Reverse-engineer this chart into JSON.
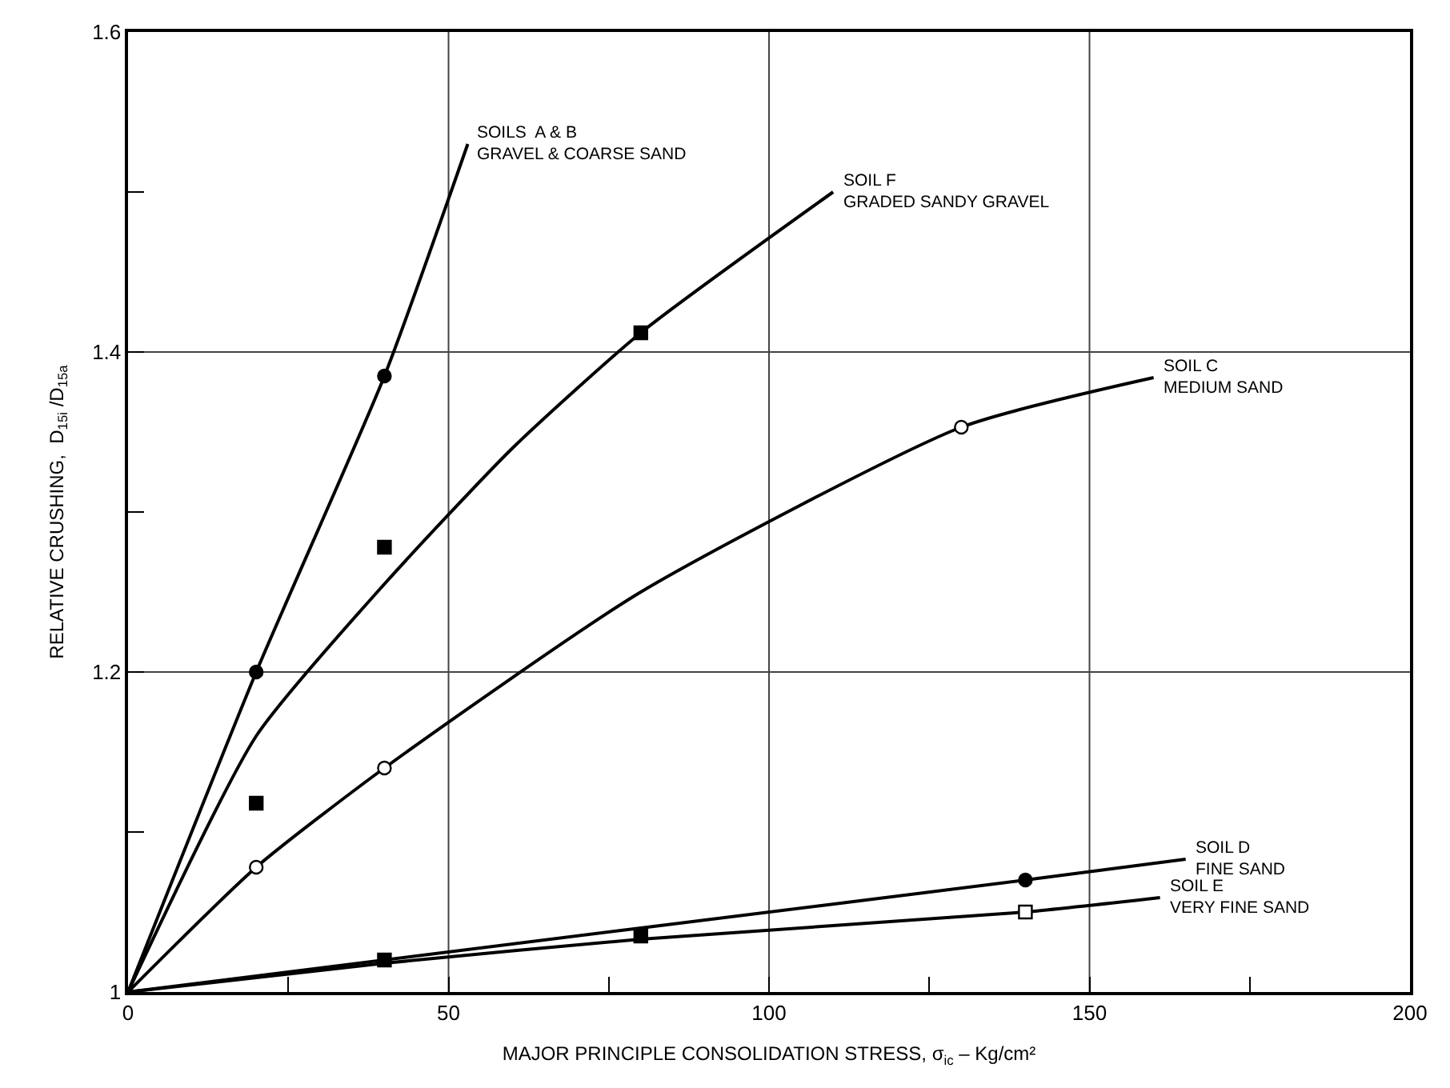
{
  "chart_data": {
    "type": "line",
    "xlabel": "MAJOR PRINCIPLE CONSOLIDATION STRESS, σ$_{ic}$ – Kg/cm²",
    "ylabel": "RELATIVE CRUSHING,  D$_{15i}$ /D$_{15a}$",
    "xlim": [
      0,
      200
    ],
    "ylim": [
      1,
      1.6
    ],
    "xticks": [
      0,
      {
        "value": 25,
        "label": null
      },
      50,
      {
        "value": 75,
        "label": null
      },
      100,
      {
        "value": 125,
        "label": null
      },
      150,
      {
        "value": 175,
        "label": null
      },
      200
    ],
    "yticks": [
      1,
      {
        "value": 1.1,
        "label": null
      },
      1.2,
      {
        "value": 1.3,
        "label": null
      },
      1.4,
      {
        "value": 1.5,
        "label": null
      },
      1.6
    ],
    "grid": true,
    "legend": false,
    "marker": "none",
    "line_style": "solid",
    "series": [
      {
        "name": "SOILS  A & B\nGRAVEL & COARSE SAND",
        "color": "#000000",
        "x": [
          0,
          20,
          40,
          53
        ],
        "values": [
          1,
          1.2,
          1.385,
          1.53
        ]
      },
      {
        "name": "SOIL F\nGRADED SANDY GRAVEL",
        "color": "#000000",
        "x": [
          0,
          20,
          40,
          60,
          80,
          110
        ],
        "values": [
          1,
          1.16,
          1.255,
          1.34,
          1.412,
          1.5
        ]
      },
      {
        "name": "SOIL C\nMEDIUM SAND",
        "color": "#000000",
        "x": [
          0,
          20,
          40,
          80,
          130,
          160
        ],
        "values": [
          1,
          1.078,
          1.14,
          1.25,
          1.353,
          1.384
        ]
      },
      {
        "name": "SOIL D\nFINE SAND",
        "color": "#000000",
        "x": [
          0,
          80,
          140,
          165
        ],
        "values": [
          1,
          1.04,
          1.07,
          1.083
        ]
      },
      {
        "name": "SOIL E\nVERY FINE SAND",
        "color": "#000000",
        "x": [
          0,
          40,
          80,
          140,
          161
        ],
        "values": [
          1,
          1.018,
          1.033,
          1.05,
          1.059
        ]
      },
      {
        "type": "scatter",
        "marker": "circle",
        "color": "#000000",
        "x": [
          20,
          40,
          140
        ],
        "values": [
          1.2,
          1.385,
          1.07
        ]
      },
      {
        "type": "scatter",
        "marker": "square",
        "color": "#000000",
        "x": [
          20,
          40,
          80,
          40,
          80
        ],
        "values": [
          1.118,
          1.278,
          1.412,
          1.02,
          1.035
        ]
      },
      {
        "type": "scatter",
        "marker": "circle",
        "color": "#ffffff",
        "x": [
          20,
          40,
          130
        ],
        "values": [
          1.078,
          1.14,
          1.353
        ]
      },
      {
        "type": "scatter",
        "marker": "square",
        "color": "#ffffff",
        "x": [
          140
        ],
        "values": [
          1.05
        ]
      }
    ]
  }
}
